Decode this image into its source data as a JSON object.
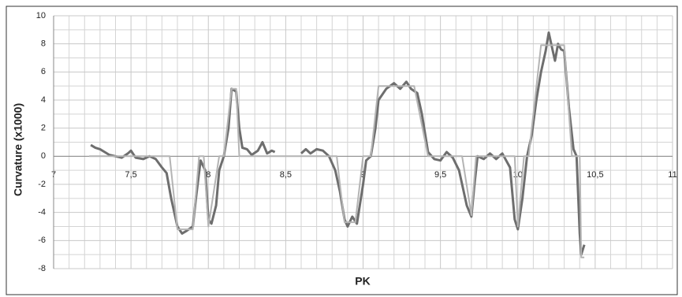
{
  "chart_data": {
    "type": "line",
    "xlabel": "PK",
    "ylabel": "Curvature (x1000)",
    "xlim": [
      7,
      11
    ],
    "ylim": [
      -8,
      10
    ],
    "xticks": [
      7,
      {
        "value": 7.5,
        "label": "7,5"
      },
      8,
      {
        "value": 8.5,
        "label": "8,5"
      },
      9,
      {
        "value": 9.5,
        "label": "9,5"
      },
      10,
      {
        "value": 10.5,
        "label": "10,5"
      },
      11
    ],
    "yticks": [
      -8,
      -6,
      -4,
      -2,
      0,
      2,
      4,
      6,
      8,
      10
    ],
    "grid": true,
    "series": [
      {
        "color": "#6e6e6e",
        "x": [
          7.24,
          7.27,
          7.3,
          7.33,
          7.36,
          7.4,
          7.44,
          7.48,
          7.5,
          7.53,
          7.58,
          7.62,
          7.66,
          7.7,
          7.73,
          7.76,
          7.8,
          7.83,
          7.86,
          7.9,
          7.92,
          7.95,
          7.98,
          8.0,
          8.02,
          8.05,
          8.07,
          8.1,
          8.13,
          8.15,
          8.18,
          8.2,
          8.22,
          8.25,
          8.28,
          8.32,
          8.35,
          8.38,
          8.41,
          8.43,
          8.5,
          8.6,
          8.63,
          8.66,
          8.7,
          8.74,
          8.78,
          8.82,
          8.85,
          8.88,
          8.9,
          8.93,
          8.96,
          9.0,
          9.02,
          9.05,
          9.08,
          9.1,
          9.15,
          9.2,
          9.24,
          9.28,
          9.31,
          9.35,
          9.38,
          9.42,
          9.46,
          9.5,
          9.54,
          9.58,
          9.62,
          9.67,
          9.7,
          9.72,
          9.74,
          9.78,
          9.82,
          9.86,
          9.9,
          9.95,
          9.98,
          10.0,
          10.03,
          10.06,
          10.09,
          10.12,
          10.15,
          10.18,
          10.2,
          10.22,
          10.24,
          10.26,
          10.28,
          10.3,
          10.33,
          10.36,
          10.38,
          10.4,
          10.41,
          10.43
        ],
        "values": [
          0.8,
          0.6,
          0.5,
          0.3,
          0.1,
          0,
          -0.1,
          0.2,
          0.4,
          -0.1,
          -0.2,
          0,
          -0.2,
          -0.8,
          -1.2,
          -3,
          -5,
          -5.5,
          -5.3,
          -5,
          -3,
          -0.3,
          -1,
          -4.5,
          -4.8,
          -3.5,
          -1,
          0,
          2,
          4.8,
          4.6,
          2,
          0.6,
          0.5,
          0.1,
          0.4,
          1,
          0.2,
          0.4,
          0.3,
          null,
          0.2,
          0.5,
          0.2,
          0.5,
          0.4,
          0,
          -1,
          -2.5,
          -4.5,
          -5,
          -4.3,
          -4.8,
          -2,
          -0.3,
          0,
          2,
          4,
          4.8,
          5.2,
          4.8,
          5.3,
          4.8,
          4.5,
          3,
          0.3,
          -0.2,
          -0.3,
          0.3,
          -0.1,
          -1,
          -3.5,
          -4.3,
          -2,
          0,
          -0.2,
          0.2,
          -0.2,
          0.2,
          -0.8,
          -4.5,
          -5.2,
          -3,
          0,
          1.5,
          4,
          6,
          7.5,
          8.8,
          7.8,
          6.8,
          8,
          7.6,
          7.5,
          3.5,
          0.5,
          0,
          -5.5,
          -7,
          -6.3
        ]
      },
      {
        "color": "#b4b4b4",
        "x": [
          7.23,
          7.75,
          7.8,
          7.9,
          7.94,
          7.97,
          8.0,
          8.07,
          8.1,
          8.15,
          8.18,
          8.2,
          8.83,
          8.85,
          8.88,
          8.95,
          9.0,
          9.05,
          9.1,
          9.33,
          9.42,
          9.64,
          9.7,
          9.73,
          9.98,
          10.0,
          10.04,
          10.07,
          10.15,
          10.3,
          10.35,
          10.4,
          10.41,
          10.43
        ],
        "values": [
          0,
          0,
          -5.2,
          -5.2,
          0,
          0,
          -5,
          0,
          0,
          4.8,
          4.8,
          0,
          0,
          -2,
          -4.7,
          -4.7,
          0,
          0,
          5,
          5,
          0,
          0,
          -4.2,
          0,
          0,
          -5,
          0,
          0,
          7.9,
          7.9,
          0,
          0,
          -7.2,
          -7.2
        ]
      }
    ]
  }
}
